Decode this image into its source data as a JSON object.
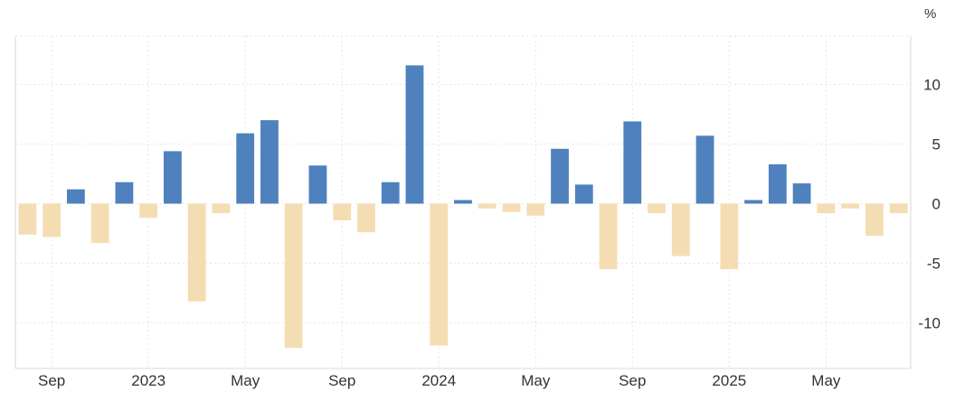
{
  "chart_data": {
    "type": "bar",
    "unit": "%",
    "ylim": [
      -14,
      14
    ],
    "y_ticks": [
      10,
      5,
      0,
      -5,
      -10
    ],
    "x_tick_labels": [
      "Sep",
      "2023",
      "May",
      "Sep",
      "2024",
      "May",
      "Sep",
      "2025",
      "May"
    ],
    "x_tick_positions": [
      1,
      5,
      9,
      13,
      17,
      21,
      25,
      29,
      33
    ],
    "grid": true,
    "colors": {
      "positive": "#4e81bd",
      "negative": "#f5ddb3"
    },
    "values": [
      -2.6,
      -2.8,
      1.2,
      -3.3,
      1.8,
      -1.2,
      4.4,
      -8.2,
      -0.8,
      5.9,
      7.0,
      -12.1,
      3.2,
      -1.4,
      -2.4,
      1.8,
      11.6,
      -11.9,
      0.3,
      -0.4,
      -0.7,
      -1.0,
      4.6,
      1.6,
      -5.5,
      6.9,
      -0.8,
      -4.4,
      5.7,
      -5.5,
      0.3,
      3.3,
      1.7,
      -0.8,
      -0.4,
      -2.7,
      -0.8
    ]
  }
}
